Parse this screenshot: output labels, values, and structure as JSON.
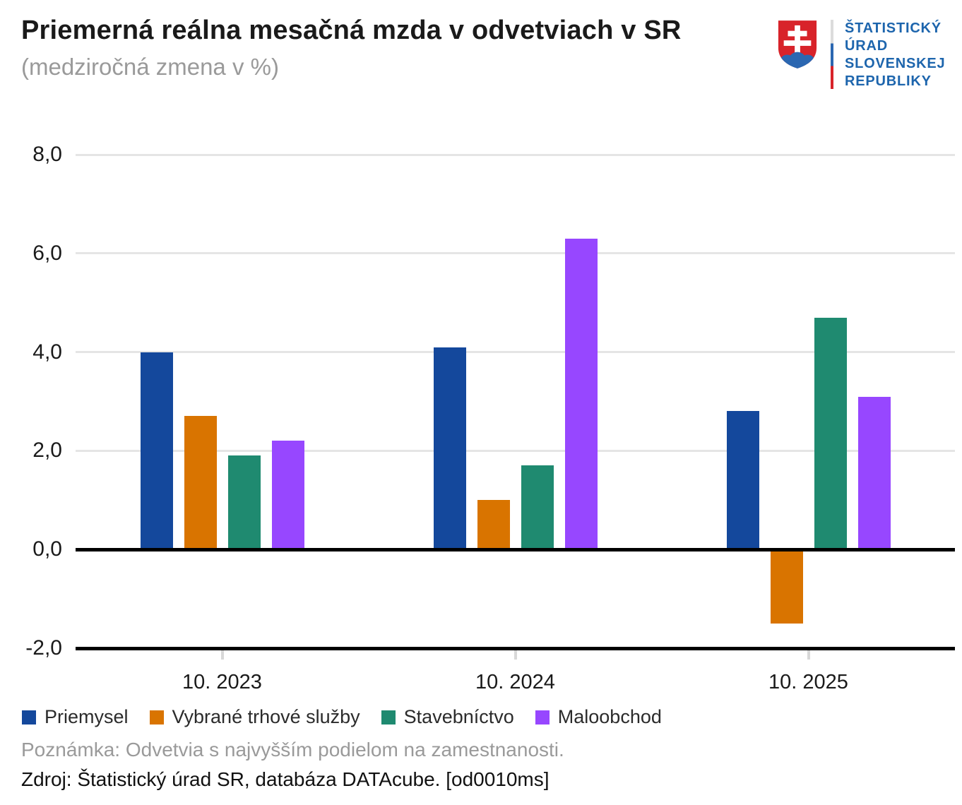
{
  "header": {
    "title": "Priemerná reálna mesačná mzda v odvetviach v SR",
    "subtitle": "(medziročná zmena v %)"
  },
  "logo": {
    "lines": [
      "ŠTATISTICKÝ",
      "ÚRAD",
      "SLOVENSKEJ",
      "REPUBLIKY"
    ],
    "text_color": "#1d65ad",
    "shield_red": "#d8232a",
    "shield_blue": "#2b67b1",
    "shield_white": "#ffffff"
  },
  "chart_data": {
    "type": "bar",
    "title": "Priemerná reálna mesačná mzda v odvetviach v SR",
    "subtitle": "(medziročná zmena v %)",
    "categories": [
      "10. 2023",
      "10. 2024",
      "10. 2025"
    ],
    "series": [
      {
        "name": "Priemysel",
        "color": "#14489c",
        "values": [
          4.0,
          4.1,
          2.8
        ]
      },
      {
        "name": "Vybrané trhové služby",
        "color": "#d97400",
        "values": [
          2.7,
          1.0,
          -1.5
        ]
      },
      {
        "name": "Stavebníctvo",
        "color": "#1f8a70",
        "values": [
          1.9,
          1.7,
          4.7
        ]
      },
      {
        "name": "Maloobchod",
        "color": "#9747ff",
        "values": [
          2.2,
          6.3,
          3.1
        ]
      }
    ],
    "ylim": [
      -2,
      8
    ],
    "y_ticks": [
      {
        "value": 8,
        "label": "8,0"
      },
      {
        "value": 6,
        "label": "6,0"
      },
      {
        "value": 4,
        "label": "4,0"
      },
      {
        "value": 2,
        "label": "2,0"
      },
      {
        "value": 0,
        "label": "0,0"
      },
      {
        "value": -2,
        "label": "-2,0"
      }
    ],
    "grid": "horizontal",
    "legend_position": "bottom"
  },
  "footer": {
    "note": "Poznámka: Odvetvia s najvyšším podielom na zamestnanosti.",
    "source": "Zdroj: Štatistický úrad SR, databáza DATAcube. [od0010ms]"
  }
}
